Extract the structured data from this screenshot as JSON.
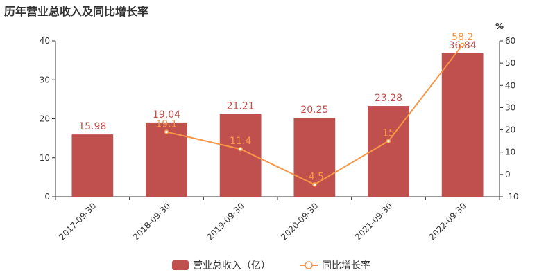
{
  "chart_data": {
    "type": "bar",
    "title": "历年营业总收入及同比增长率",
    "categories": [
      "2017-09-30",
      "2018-09-30",
      "2019-09-30",
      "2020-09-30",
      "2021-09-30",
      "2022-09-30"
    ],
    "series": [
      {
        "name": "营业总收入（亿）",
        "type": "bar",
        "axis": "left",
        "color": "#c0504d",
        "values": [
          15.98,
          19.04,
          21.21,
          20.25,
          23.28,
          36.84
        ]
      },
      {
        "name": "同比增长率",
        "type": "line",
        "axis": "right",
        "color": "#f79646",
        "values": [
          null,
          19.1,
          11.4,
          -4.5,
          15,
          58.2
        ]
      }
    ],
    "y_left": {
      "min": 0,
      "max": 40,
      "ticks": [
        0,
        10,
        20,
        30,
        40
      ]
    },
    "y_right": {
      "min": -10,
      "max": 60,
      "ticks": [
        -10,
        0,
        10,
        20,
        30,
        40,
        50,
        60
      ],
      "label": "%"
    },
    "legend_position": "bottom"
  }
}
